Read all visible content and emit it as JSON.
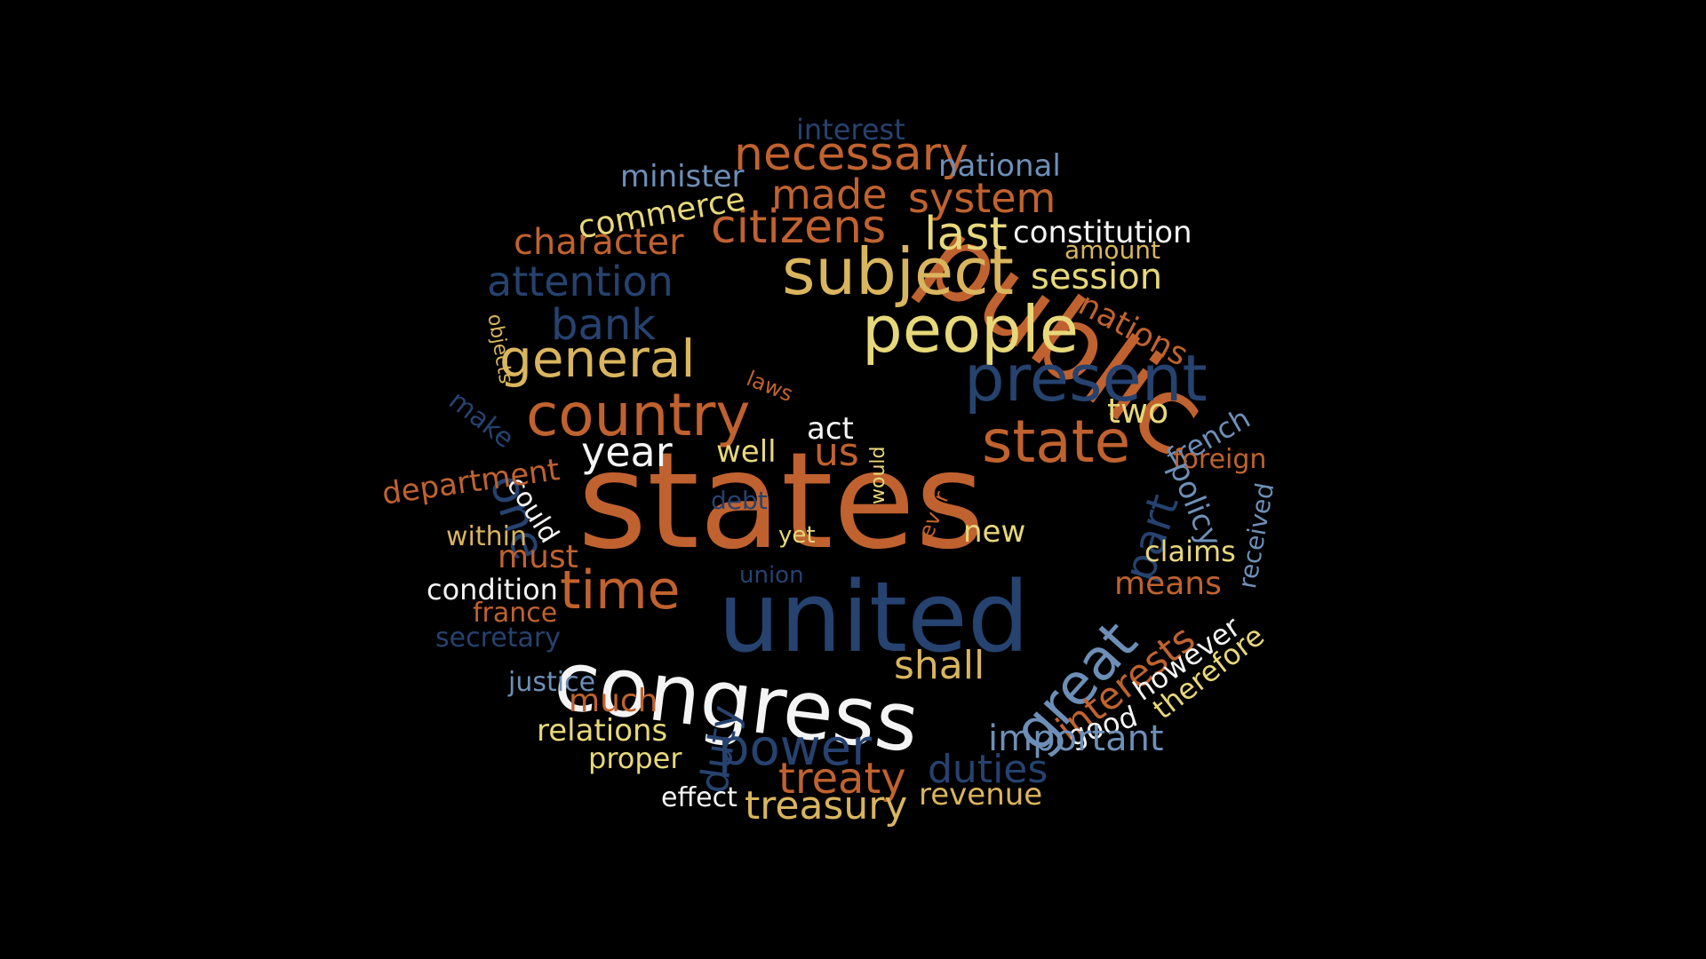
{
  "palette": {
    "orange": "#c0622f",
    "navy": "#26426f",
    "gold": "#d9b55e",
    "yellow": "#e7d87a",
    "white": "#f4f4f4",
    "steel": "#6d8fb7",
    "background": "#000000"
  },
  "words": [
    {
      "text": "states",
      "color": "orange"
    },
    {
      "text": "public",
      "color": "orange"
    },
    {
      "text": "united",
      "color": "navy"
    },
    {
      "text": "congress",
      "color": "white"
    },
    {
      "text": "subject",
      "color": "gold"
    },
    {
      "text": "people",
      "color": "yellow"
    },
    {
      "text": "present",
      "color": "navy"
    },
    {
      "text": "state",
      "color": "orange"
    },
    {
      "text": "country",
      "color": "orange"
    },
    {
      "text": "general",
      "color": "gold"
    },
    {
      "text": "great",
      "color": "steel"
    },
    {
      "text": "citizens",
      "color": "orange"
    },
    {
      "text": "necessary",
      "color": "orange"
    },
    {
      "text": "made",
      "color": "orange"
    },
    {
      "text": "system",
      "color": "orange"
    },
    {
      "text": "last",
      "color": "yellow"
    },
    {
      "text": "time",
      "color": "orange"
    },
    {
      "text": "power",
      "color": "navy"
    },
    {
      "text": "treaty",
      "color": "orange"
    },
    {
      "text": "treasury",
      "color": "gold"
    },
    {
      "text": "bank",
      "color": "navy"
    },
    {
      "text": "attention",
      "color": "navy"
    },
    {
      "text": "character",
      "color": "orange"
    },
    {
      "text": "commerce",
      "color": "yellow"
    },
    {
      "text": "minister",
      "color": "steel"
    },
    {
      "text": "interest",
      "color": "navy"
    },
    {
      "text": "national",
      "color": "steel"
    },
    {
      "text": "constitution",
      "color": "white"
    },
    {
      "text": "amount",
      "color": "gold"
    },
    {
      "text": "session",
      "color": "yellow"
    },
    {
      "text": "nations",
      "color": "orange"
    },
    {
      "text": "two",
      "color": "yellow"
    },
    {
      "text": "french",
      "color": "steel"
    },
    {
      "text": "foreign",
      "color": "orange"
    },
    {
      "text": "policy",
      "color": "steel"
    },
    {
      "text": "part",
      "color": "navy"
    },
    {
      "text": "received",
      "color": "steel"
    },
    {
      "text": "claims",
      "color": "yellow"
    },
    {
      "text": "means",
      "color": "orange"
    },
    {
      "text": "interests",
      "color": "orange"
    },
    {
      "text": "however",
      "color": "white"
    },
    {
      "text": "therefore",
      "color": "yellow"
    },
    {
      "text": "good",
      "color": "white"
    },
    {
      "text": "important",
      "color": "steel"
    },
    {
      "text": "duties",
      "color": "navy"
    },
    {
      "text": "revenue",
      "color": "gold"
    },
    {
      "text": "shall",
      "color": "gold"
    },
    {
      "text": "new",
      "color": "yellow"
    },
    {
      "text": "yet",
      "color": "yellow"
    },
    {
      "text": "would",
      "color": "yellow"
    },
    {
      "text": "ever",
      "color": "orange"
    },
    {
      "text": "act",
      "color": "white"
    },
    {
      "text": "us",
      "color": "orange"
    },
    {
      "text": "well",
      "color": "yellow"
    },
    {
      "text": "year",
      "color": "white"
    },
    {
      "text": "one",
      "color": "navy"
    },
    {
      "text": "could",
      "color": "white"
    },
    {
      "text": "debt",
      "color": "navy"
    },
    {
      "text": "union",
      "color": "navy"
    },
    {
      "text": "within",
      "color": "gold"
    },
    {
      "text": "must",
      "color": "orange"
    },
    {
      "text": "condition",
      "color": "white"
    },
    {
      "text": "france",
      "color": "orange"
    },
    {
      "text": "secretary",
      "color": "navy"
    },
    {
      "text": "justice",
      "color": "steel"
    },
    {
      "text": "much",
      "color": "orange"
    },
    {
      "text": "relations",
      "color": "yellow"
    },
    {
      "text": "proper",
      "color": "yellow"
    },
    {
      "text": "effect",
      "color": "white"
    },
    {
      "text": "duty",
      "color": "navy"
    },
    {
      "text": "department",
      "color": "orange"
    },
    {
      "text": "make",
      "color": "navy"
    },
    {
      "text": "objects",
      "color": "gold"
    },
    {
      "text": "laws",
      "color": "orange"
    }
  ]
}
